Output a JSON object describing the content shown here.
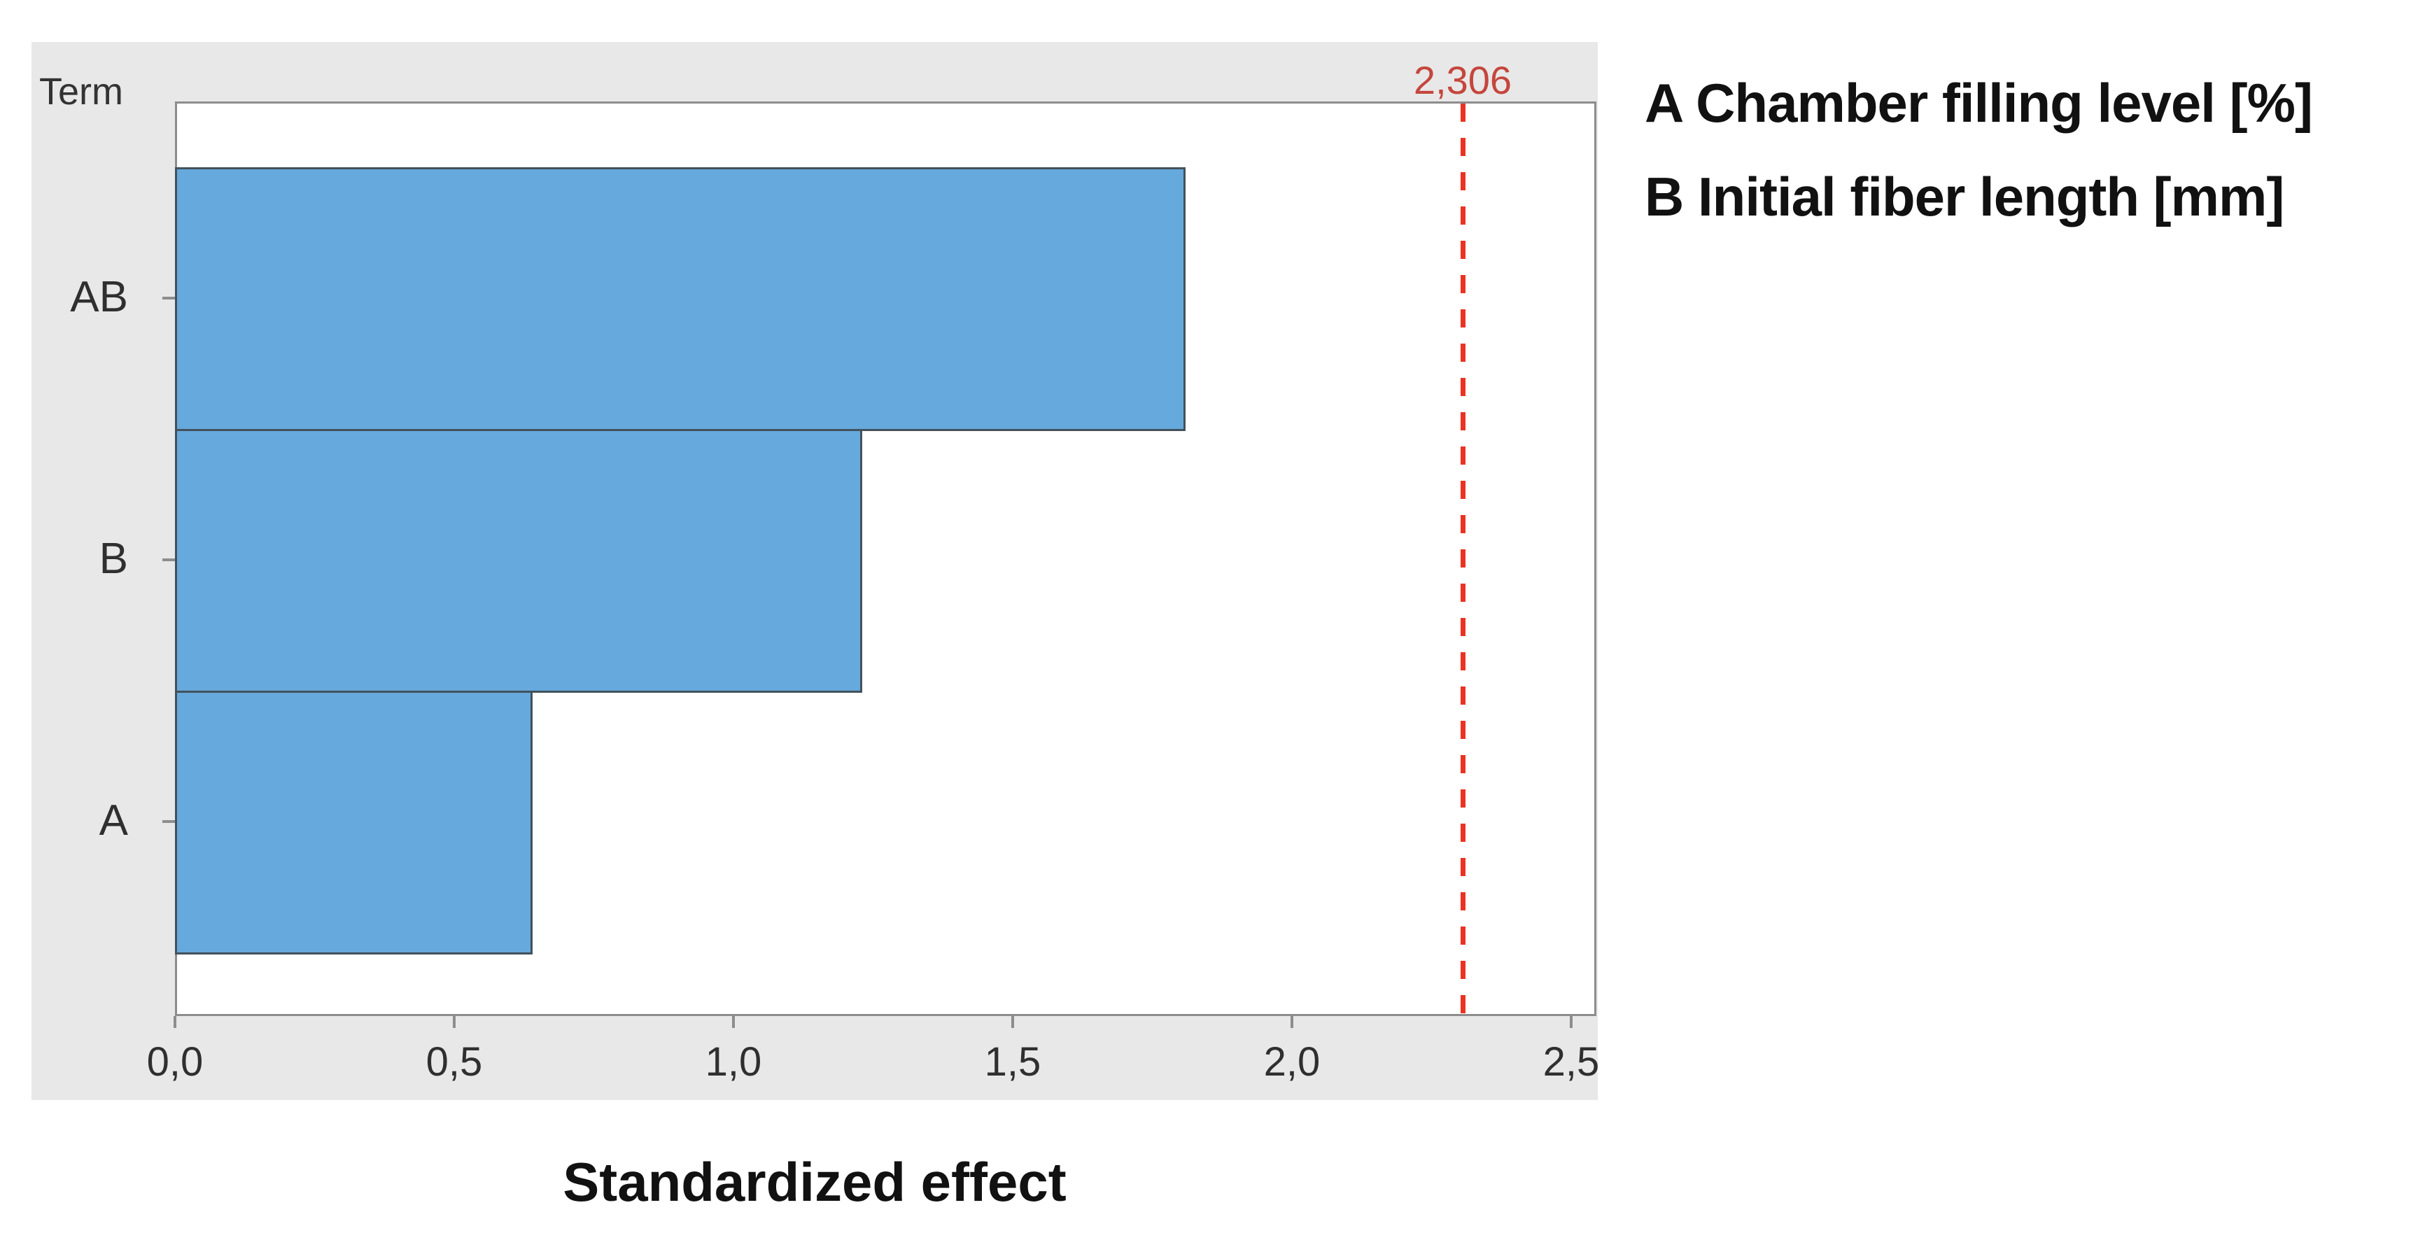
{
  "figure": {
    "term_label": "Term"
  },
  "legend": {
    "lines": [
      "A Chamber filling level [%]",
      "B Initial fiber length [mm]"
    ]
  },
  "chart_data": {
    "type": "bar",
    "orientation": "horizontal",
    "ylabel": "Term",
    "xlabel": "Standardized effect",
    "categories": [
      "AB",
      "B",
      "A"
    ],
    "values": [
      1.81,
      1.23,
      0.64
    ],
    "xlim": [
      0,
      2.55
    ],
    "x_ticks": [
      0,
      0.5,
      1,
      1.5,
      2,
      2.5
    ],
    "x_tick_labels": [
      "0,0",
      "0,5",
      "1,0",
      "1,5",
      "2,0",
      "2,5"
    ],
    "reference_line": {
      "value": 2.306,
      "label": "2,306"
    },
    "legend_entries": [
      "A Chamber filling level [%]",
      "B Initial fiber length [mm]"
    ],
    "grid": false,
    "legend_position": "outside-top-right",
    "colors": {
      "bar_fill": "#66a9dc",
      "bar_border": "#42525c",
      "panel_bg": "#e8e8e8",
      "axis_line": "#8d8d8d",
      "reference_line": "#ea3323",
      "reference_label": "#c5463c",
      "text": "#2f2f2f"
    }
  }
}
